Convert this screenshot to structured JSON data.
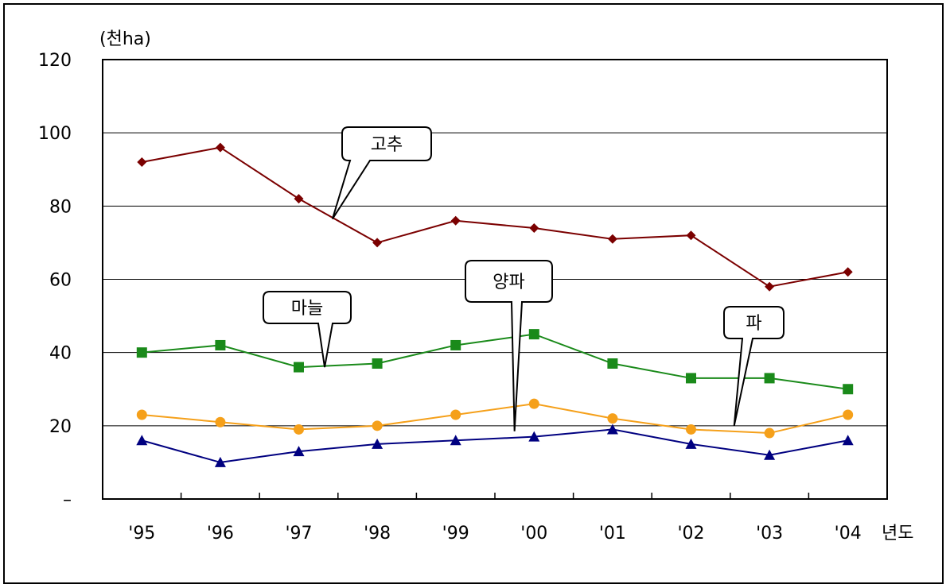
{
  "chart_data": {
    "type": "line",
    "title": "",
    "ylabel": "(천ha)",
    "xlabel": "년도",
    "ylim": [
      0,
      120
    ],
    "y_ticks": [
      "–",
      "20",
      "40",
      "60",
      "80",
      "100",
      "120"
    ],
    "y_tick_values": [
      0,
      20,
      40,
      60,
      80,
      100,
      120
    ],
    "categories": [
      "'95",
      "'96",
      "'97",
      "'98",
      "'99",
      "'00",
      "'01",
      "'02",
      "'03",
      "'04"
    ],
    "grid": true,
    "legend": "callouts",
    "series": [
      {
        "name": "고추",
        "color": "#7b0000",
        "marker": "diamond",
        "values": [
          92,
          96,
          82,
          70,
          76,
          74,
          71,
          72,
          58,
          62
        ]
      },
      {
        "name": "마늘",
        "color": "#1a8a1a",
        "marker": "square",
        "values": [
          40,
          42,
          36,
          37,
          42,
          45,
          37,
          33,
          33,
          30
        ]
      },
      {
        "name": "양파",
        "color": "#000080",
        "marker": "triangle",
        "values": [
          16,
          10,
          13,
          15,
          16,
          17,
          19,
          15,
          12,
          16
        ]
      },
      {
        "name": "파",
        "color": "#f5a01a",
        "marker": "circle",
        "values": [
          23,
          21,
          19,
          20,
          23,
          26,
          22,
          19,
          18,
          23
        ]
      }
    ],
    "callouts": [
      {
        "series": 0,
        "text": "고추"
      },
      {
        "series": 1,
        "text": "마늘"
      },
      {
        "series": 2,
        "text": "양파"
      },
      {
        "series": 3,
        "text": "파"
      }
    ]
  }
}
